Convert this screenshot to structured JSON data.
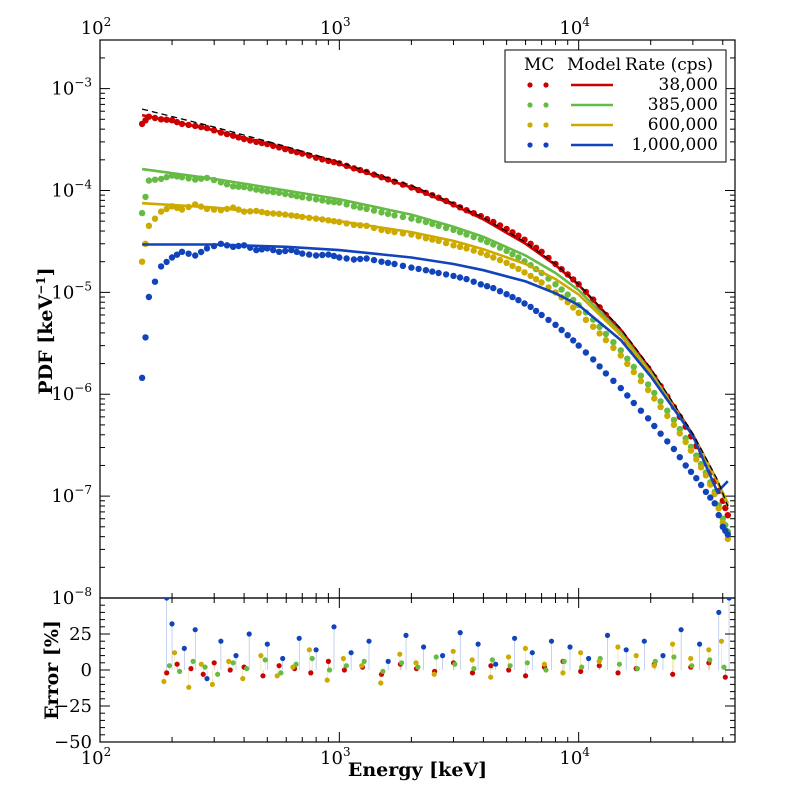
{
  "chart_data": [
    {
      "type": "scatter",
      "panel": "main",
      "x_scale": "log",
      "y_scale": "log",
      "xlim": [
        100,
        45000
      ],
      "ylim": [
        1e-08,
        0.003
      ],
      "xticks": [
        {
          "base": "10",
          "exp": "2"
        },
        {
          "base": "10",
          "exp": "3"
        },
        {
          "base": "10",
          "exp": "4"
        }
      ],
      "yticks": [
        {
          "base": "10",
          "exp": "−8",
          "value": 1e-08
        },
        {
          "base": "10",
          "exp": "−7",
          "value": 1e-07
        },
        {
          "base": "10",
          "exp": "−6",
          "value": 1e-06
        },
        {
          "base": "10",
          "exp": "−5",
          "value": 1e-05
        },
        {
          "base": "10",
          "exp": "−4",
          "value": 0.0001
        },
        {
          "base": "10",
          "exp": "−3",
          "value": 0.001
        }
      ],
      "ylabel": "PDF [keV",
      "ylabel_sup": "−1",
      "ylabel_end": "]",
      "legend": {
        "placement": "top-right",
        "headers": [
          "MC",
          "Model",
          "Rate (cps)"
        ],
        "entries": [
          "38,000",
          "385,000",
          "600,000",
          "1,000,000"
        ]
      },
      "reference": {
        "style": "dashed",
        "color": "#000000",
        "x": [
          150,
          300,
          600,
          1000,
          2000,
          3000,
          4000,
          6000,
          8000,
          10000,
          15000,
          20000,
          30000,
          38000,
          42000
        ],
        "y": [
          0.00063,
          0.00042,
          0.00027,
          0.00019,
          0.000112,
          7.5e-05,
          5.4e-05,
          3.1e-05,
          1.9e-05,
          1.2e-05,
          4.4e-06,
          1.8e-06,
          4.1e-07,
          1.45e-07,
          8e-08
        ]
      },
      "series": [
        {
          "rate": "38,000",
          "color": "#cc0000",
          "model_x": [
            150,
            300,
            600,
            1000,
            2000,
            3000,
            4000,
            6000,
            8000,
            10000,
            15000,
            20000,
            30000,
            38000,
            42000
          ],
          "model_y": [
            0.00055,
            0.00039,
            0.00026,
            0.000182,
            0.000107,
            7.2e-05,
            5.2e-05,
            3e-05,
            1.85e-05,
            1.18e-05,
            4.3e-06,
            1.75e-06,
            4e-07,
            1.4e-07,
            8e-08
          ],
          "points_x": [
            150,
            160,
            180,
            200,
            220,
            250,
            280,
            320,
            360,
            400,
            450,
            500,
            560,
            630,
            700,
            800,
            900,
            1000,
            1150,
            1300,
            1500,
            1700,
            2000,
            2300,
            2600,
            3000,
            3400,
            3900,
            4400,
            5000,
            5600,
            6300,
            7000,
            8000,
            9000,
            10000,
            11500,
            13000,
            15000,
            17000,
            19500,
            22000,
            25000,
            28000,
            31000,
            34000,
            37000,
            40000,
            42000
          ],
          "points_y": [
            0.00045,
            0.00053,
            0.0005,
            0.00049,
            0.00045,
            0.00043,
            0.00041,
            0.00037,
            0.000345,
            0.00032,
            0.0003,
            0.000285,
            0.000265,
            0.000245,
            0.00023,
            0.00021,
            0.000195,
            0.000185,
            0.000165,
            0.000152,
            0.000135,
            0.000122,
            0.000107,
            9.5e-05,
            8.5e-05,
            7.3e-05,
            6.4e-05,
            5.6e-05,
            4.9e-05,
            4.2e-05,
            3.6e-05,
            3e-05,
            2.5e-05,
            1.9e-05,
            1.5e-05,
            1.2e-05,
            8.5e-06,
            6e-06,
            4e-06,
            2.7e-06,
            1.8e-06,
            1.2e-06,
            7.5e-07,
            4.8e-07,
            3.1e-07,
            2.1e-07,
            1.4e-07,
            9e-08,
            6.5e-08
          ],
          "error_x": [
            190,
            210,
            240,
            270,
            300,
            350,
            400,
            480,
            560,
            650,
            760,
            900,
            1050,
            1250,
            1500,
            1800,
            2100,
            2500,
            3000,
            3600,
            4300,
            5100,
            6000,
            7200,
            8600,
            10200,
            12200,
            14600,
            17400,
            20700,
            24700,
            29400,
            35000,
            41000
          ],
          "error_y": [
            -2,
            4,
            1,
            -3,
            5,
            0,
            2,
            -4,
            3,
            1,
            -2,
            6,
            0,
            2,
            -3,
            4,
            1,
            -1,
            5,
            -2,
            3,
            0,
            -4,
            2,
            6,
            -1,
            3,
            -2,
            1,
            4,
            -3,
            2,
            5,
            -5
          ]
        },
        {
          "rate": "385,000",
          "color": "#66bb44",
          "model_x": [
            150,
            300,
            600,
            1000,
            2000,
            3000,
            4000,
            6000,
            8000,
            10000,
            15000,
            20000,
            30000,
            38000,
            42000
          ],
          "model_y": [
            0.000162,
            0.00013,
            0.0001,
            8.2e-05,
            5.8e-05,
            4.4e-05,
            3.5e-05,
            2.3e-05,
            1.55e-05,
            1.05e-05,
            4e-06,
            1.65e-06,
            3.9e-07,
            1.4e-07,
            8e-08
          ],
          "points_x": [
            150,
            160,
            180,
            200,
            220,
            250,
            280,
            320,
            360,
            400,
            450,
            500,
            560,
            630,
            700,
            800,
            900,
            1000,
            1150,
            1300,
            1500,
            1700,
            2000,
            2300,
            2600,
            3000,
            3400,
            3900,
            4400,
            5000,
            5600,
            6300,
            7000,
            8000,
            9000,
            10000,
            11500,
            13000,
            15000,
            17000,
            19500,
            22000,
            25000,
            28000,
            31000,
            34000,
            37000,
            40000,
            42000
          ],
          "points_y": [
            6e-05,
            0.000125,
            0.00013,
            0.00014,
            0.000135,
            0.000128,
            0.000133,
            0.00012,
            0.00011,
            0.000108,
            0.000102,
            9.8e-05,
            9.5e-05,
            9e-05,
            8.6e-05,
            8.2e-05,
            7.8e-05,
            7.6e-05,
            7e-05,
            6.6e-05,
            6.1e-05,
            5.7e-05,
            5.3e-05,
            4.9e-05,
            4.5e-05,
            4.1e-05,
            3.7e-05,
            3.3e-05,
            2.95e-05,
            2.55e-05,
            2.2e-05,
            1.85e-05,
            1.55e-05,
            1.2e-05,
            9.5e-06,
            7.5e-06,
            5.4e-06,
            3.9e-06,
            2.7e-06,
            1.85e-06,
            1.25e-06,
            8.5e-07,
            5.6e-07,
            3.7e-07,
            2.5e-07,
            1.7e-07,
            1.1e-07,
            6e-08,
            4.5e-08
          ],
          "error_x": [
            195,
            215,
            245,
            275,
            310,
            360,
            410,
            490,
            570,
            660,
            770,
            910,
            1070,
            1270,
            1520,
            1820,
            2130,
            2540,
            3040,
            3650,
            4360,
            5170,
            6100,
            7300,
            8700,
            10300,
            12300,
            14800,
            17600,
            20900,
            25000,
            29700,
            35300,
            40500
          ],
          "error_y": [
            3,
            -1,
            6,
            2,
            -3,
            5,
            1,
            7,
            -2,
            4,
            8,
            0,
            3,
            6,
            -1,
            5,
            2,
            9,
            4,
            1,
            7,
            3,
            5,
            0,
            6,
            2,
            8,
            4,
            1,
            6,
            9,
            3,
            7,
            2
          ]
        },
        {
          "rate": "600,000",
          "color": "#ccaa00",
          "model_x": [
            150,
            300,
            600,
            1000,
            2000,
            3000,
            4000,
            6000,
            8000,
            10000,
            15000,
            20000,
            30000,
            38000,
            42000
          ],
          "model_y": [
            7.5e-05,
            6.8e-05,
            5.8e-05,
            5e-05,
            3.9e-05,
            3.2e-05,
            2.65e-05,
            1.9e-05,
            1.35e-05,
            9.5e-06,
            3.8e-06,
            1.6e-06,
            3.9e-07,
            1.4e-07,
            8.5e-08
          ],
          "points_x": [
            150,
            160,
            180,
            200,
            220,
            250,
            280,
            320,
            360,
            400,
            450,
            500,
            560,
            630,
            700,
            800,
            900,
            1000,
            1150,
            1300,
            1500,
            1700,
            2000,
            2300,
            2600,
            3000,
            3400,
            3900,
            4400,
            5000,
            5600,
            6300,
            7000,
            8000,
            9000,
            10000,
            11500,
            13000,
            15000,
            17000,
            19500,
            22000,
            25000,
            28000,
            31000,
            34000,
            37000,
            40000,
            42000
          ],
          "points_y": [
            2e-05,
            4.5e-05,
            6.2e-05,
            7e-05,
            6.5e-05,
            7.3e-05,
            6.6e-05,
            6.4e-05,
            6.8e-05,
            6.2e-05,
            6.3e-05,
            6e-05,
            5.9e-05,
            5.7e-05,
            5.5e-05,
            5.3e-05,
            5.1e-05,
            4.9e-05,
            4.6e-05,
            4.5e-05,
            4.1e-05,
            3.9e-05,
            3.7e-05,
            3.4e-05,
            3.2e-05,
            2.9e-05,
            2.7e-05,
            2.45e-05,
            2.2e-05,
            1.95e-05,
            1.7e-05,
            1.45e-05,
            1.25e-05,
            1e-05,
            8e-06,
            6.3e-06,
            4.6e-06,
            3.4e-06,
            2.4e-06,
            1.65e-06,
            1.1e-06,
            7.5e-07,
            5e-07,
            3.4e-07,
            2.3e-07,
            1.6e-07,
            1.05e-07,
            5.5e-08,
            3.8e-08
          ],
          "error_x": [
            185,
            205,
            235,
            265,
            295,
            345,
            395,
            470,
            550,
            640,
            750,
            890,
            1040,
            1240,
            1490,
            1790,
            2090,
            2490,
            2990,
            3590,
            4290,
            5090,
            5990,
            7190,
            8590,
            10190,
            12190,
            14590,
            17390,
            20690,
            24690,
            29390,
            34990,
            39500
          ],
          "error_y": [
            -8,
            12,
            -12,
            4,
            -10,
            6,
            -6,
            10,
            -4,
            2,
            14,
            -7,
            8,
            3,
            -9,
            11,
            5,
            -3,
            13,
            7,
            -5,
            9,
            15,
            4,
            -2,
            12,
            6,
            16,
            10,
            3,
            18,
            8,
            14,
            20
          ]
        },
        {
          "rate": "1,000,000",
          "color": "#1144bb",
          "model_x": [
            150,
            300,
            600,
            1000,
            2000,
            3000,
            4000,
            6000,
            8000,
            10000,
            15000,
            20000,
            30000,
            38000,
            42000
          ],
          "model_y": [
            2.95e-05,
            2.95e-05,
            2.8e-05,
            2.6e-05,
            2.2e-05,
            1.9e-05,
            1.65e-05,
            1.28e-05,
            9.8e-06,
            7.5e-06,
            3.4e-06,
            1.5e-06,
            3.9e-07,
            1.1e-07,
            1.4e-07
          ],
          "points_x": [
            150,
            160,
            180,
            200,
            220,
            250,
            280,
            320,
            360,
            400,
            450,
            500,
            560,
            630,
            700,
            800,
            900,
            1000,
            1150,
            1300,
            1500,
            1700,
            2000,
            2300,
            2600,
            3000,
            3400,
            3900,
            4400,
            5000,
            5600,
            6300,
            7000,
            8000,
            9000,
            10000,
            11500,
            13000,
            15000,
            17000,
            19500,
            22000,
            25000,
            28000,
            31000,
            34000,
            37000,
            40000,
            42000
          ],
          "points_y": [
            1.45e-06,
            9e-06,
            1.8e-05,
            2.2e-05,
            2.5e-05,
            2.3e-05,
            2.7e-05,
            3e-05,
            2.8e-05,
            2.9e-05,
            2.6e-05,
            2.7e-05,
            2.5e-05,
            2.6e-05,
            2.4e-05,
            2.3e-05,
            2.35e-05,
            2.2e-05,
            2.1e-05,
            2.15e-05,
            2e-05,
            1.9e-05,
            1.75e-05,
            1.65e-05,
            1.55e-05,
            1.45e-05,
            1.35e-05,
            1.2e-05,
            1.1e-05,
            9.6e-06,
            8.4e-06,
            7.2e-06,
            6e-06,
            4.8e-06,
            3.8e-06,
            3e-06,
            2.2e-06,
            1.6e-06,
            1.15e-06,
            8.2e-07,
            5.8e-07,
            4.1e-07,
            2.9e-07,
            2e-07,
            1.5e-07,
            1.1e-07,
            8.5e-08,
            5e-08,
            4.2e-08
          ],
          "error_x": [
            190,
            200,
            225,
            250,
            280,
            320,
            370,
            420,
            500,
            580,
            680,
            800,
            950,
            1120,
            1330,
            1600,
            1900,
            2250,
            2700,
            3200,
            3800,
            4500,
            5400,
            6400,
            7700,
            9200,
            11000,
            13200,
            15800,
            18800,
            22500,
            26800,
            32000,
            38500,
            42500
          ],
          "error_y": [
            50,
            32,
            15,
            28,
            -6,
            20,
            10,
            25,
            18,
            8,
            22,
            14,
            30,
            12,
            20,
            6,
            24,
            16,
            10,
            26,
            18,
            4,
            22,
            12,
            20,
            16,
            8,
            24,
            14,
            20,
            10,
            28,
            18,
            40,
            50
          ]
        }
      ]
    },
    {
      "type": "scatter",
      "panel": "residual",
      "x_scale": "log",
      "xlim": [
        100,
        45000
      ],
      "ylim": [
        -50,
        50
      ],
      "xticks": [
        {
          "base": "10",
          "exp": "2"
        },
        {
          "base": "10",
          "exp": "3"
        },
        {
          "base": "10",
          "exp": "4"
        }
      ],
      "yticks": [
        "−50",
        "−25",
        "0",
        "25"
      ],
      "ytick_values": [
        -50,
        -25,
        0,
        25
      ],
      "xlabel": "Energy [keV]",
      "ylabel": "Error [%]"
    }
  ]
}
